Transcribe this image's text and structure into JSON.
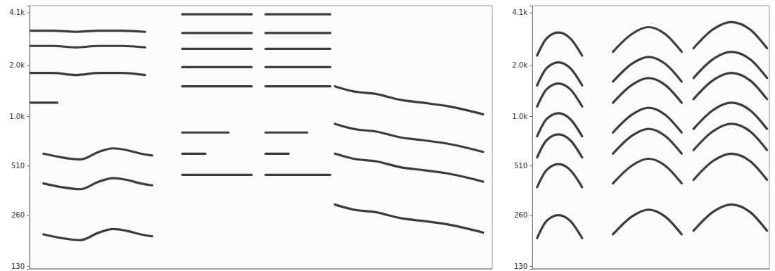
{
  "chart_data": [
    {
      "type": "line",
      "color": "#1a1a1a",
      "log": "y",
      "tick_labels": "y",
      "xlim": [
        0,
        100
      ],
      "ylim": [
        125,
        4500
      ],
      "yticks": [
        {
          "value": 4100,
          "label": "4.1k"
        },
        {
          "value": 2000,
          "label": "2.0k"
        },
        {
          "value": 1000,
          "label": "1.0k"
        },
        510,
        260,
        130
      ],
      "series": [
        {
          "x": [
            3,
            7,
            11,
            15,
            18,
            21,
            24,
            26.5
          ],
          "values": [
            200,
            190,
            185,
            205,
            215,
            210,
            200,
            195
          ]
        },
        {
          "x": [
            3,
            7,
            11,
            15,
            18,
            21,
            24,
            26.5
          ],
          "values": [
            400,
            380,
            370,
            410,
            430,
            420,
            400,
            390
          ]
        },
        {
          "x": [
            3,
            7,
            11,
            15,
            18,
            21,
            24,
            26.5
          ],
          "values": [
            600,
            570,
            555,
            615,
            645,
            630,
            600,
            585
          ]
        },
        {
          "x": [
            0,
            3,
            6
          ],
          "values": [
            1200,
            1200,
            1200
          ]
        },
        {
          "x": [
            0,
            5,
            10,
            15,
            20,
            25
          ],
          "values": [
            1800,
            1800,
            1750,
            1800,
            1800,
            1750
          ]
        },
        {
          "x": [
            0,
            5,
            10,
            15,
            20,
            25
          ],
          "values": [
            2600,
            2600,
            2550,
            2600,
            2600,
            2550
          ]
        },
        {
          "x": [
            0,
            5,
            10,
            15,
            20,
            25
          ],
          "values": [
            3200,
            3200,
            3150,
            3200,
            3200,
            3150
          ]
        },
        {
          "x": [
            33,
            40,
            48,
            49,
            51,
            58,
            65
          ],
          "values": [
            450,
            450,
            450,
            null,
            450,
            450,
            450
          ]
        },
        {
          "x": [
            33,
            38,
            40,
            51,
            56
          ],
          "values": [
            600,
            600,
            null,
            600,
            600
          ]
        },
        {
          "x": [
            33,
            38,
            43,
            45,
            51,
            56,
            60
          ],
          "values": [
            800,
            800,
            800,
            null,
            800,
            800,
            800
          ]
        },
        {
          "x": [
            33,
            40,
            48,
            49,
            51,
            58,
            65
          ],
          "values": [
            1500,
            1500,
            1500,
            null,
            1500,
            1500,
            1500
          ]
        },
        {
          "x": [
            33,
            40,
            48,
            49,
            51,
            58,
            65
          ],
          "values": [
            1950,
            1950,
            1950,
            null,
            1950,
            1950,
            1950
          ]
        },
        {
          "x": [
            33,
            40,
            48,
            49,
            51,
            58,
            65
          ],
          "values": [
            2500,
            2500,
            2500,
            null,
            2500,
            2500,
            2500
          ]
        },
        {
          "x": [
            33,
            40,
            48,
            49,
            51,
            58,
            65
          ],
          "values": [
            3100,
            3100,
            3100,
            null,
            3100,
            3100,
            3100
          ]
        },
        {
          "x": [
            33,
            40,
            48,
            49,
            51,
            58,
            65
          ],
          "values": [
            4000,
            4000,
            4000,
            null,
            4000,
            4000,
            4000
          ]
        },
        {
          "x": [
            66,
            70,
            75,
            80,
            85,
            90,
            95,
            98
          ],
          "values": [
            300,
            280,
            270,
            250,
            240,
            230,
            215,
            205
          ]
        },
        {
          "x": [
            66,
            70,
            75,
            80,
            85,
            90,
            95,
            98
          ],
          "values": [
            600,
            560,
            540,
            500,
            480,
            460,
            430,
            410
          ]
        },
        {
          "x": [
            66,
            70,
            75,
            80,
            85,
            90,
            95,
            98
          ],
          "values": [
            900,
            840,
            810,
            750,
            720,
            690,
            645,
            615
          ]
        },
        {
          "x": [
            66,
            70,
            75,
            80,
            85,
            90,
            95,
            98
          ],
          "values": [
            1500,
            1400,
            1350,
            1250,
            1200,
            1150,
            1075,
            1025
          ]
        }
      ]
    },
    {
      "type": "line",
      "color": "#1a1a1a",
      "log": "y",
      "tick_labels": "y",
      "xlim": [
        0,
        100
      ],
      "ylim": [
        125,
        4500
      ],
      "yticks": [
        {
          "value": 4100,
          "label": "4.1k"
        },
        {
          "value": 2000,
          "label": "2.0k"
        },
        {
          "value": 1000,
          "label": "1.0k"
        },
        510,
        260,
        130
      ],
      "x": [
        2,
        6,
        11,
        16,
        21,
        27,
        34,
        42,
        49,
        56,
        63,
        65,
        68,
        76,
        84,
        92,
        99
      ],
      "series": [
        {
          "values": [
            190,
            240,
            260,
            240,
            190,
            null,
            200,
            255,
            280,
            255,
            200,
            null,
            210,
            270,
            300,
            270,
            210
          ]
        },
        {
          "values": [
            380,
            480,
            520,
            480,
            380,
            null,
            400,
            510,
            560,
            510,
            400,
            null,
            420,
            540,
            600,
            540,
            420
          ]
        },
        {
          "values": [
            570,
            720,
            780,
            720,
            570,
            null,
            600,
            765,
            840,
            765,
            600,
            null,
            630,
            810,
            900,
            810,
            630
          ]
        },
        {
          "values": [
            760,
            960,
            1040,
            960,
            760,
            null,
            800,
            1020,
            1120,
            1020,
            800,
            null,
            840,
            1080,
            1200,
            1080,
            840
          ]
        },
        {
          "values": [
            1140,
            1440,
            1560,
            1440,
            1140,
            null,
            1200,
            1530,
            1680,
            1530,
            1200,
            null,
            1260,
            1620,
            1800,
            1620,
            1260
          ]
        },
        {
          "values": [
            1520,
            1920,
            2080,
            1920,
            1520,
            null,
            1600,
            2040,
            2240,
            2040,
            1600,
            null,
            1680,
            2160,
            2400,
            2160,
            1680
          ]
        },
        {
          "values": [
            2280,
            2880,
            3120,
            2880,
            2280,
            null,
            2400,
            3060,
            3360,
            3060,
            2400,
            null,
            2520,
            3240,
            3600,
            3240,
            2520
          ]
        }
      ]
    }
  ]
}
